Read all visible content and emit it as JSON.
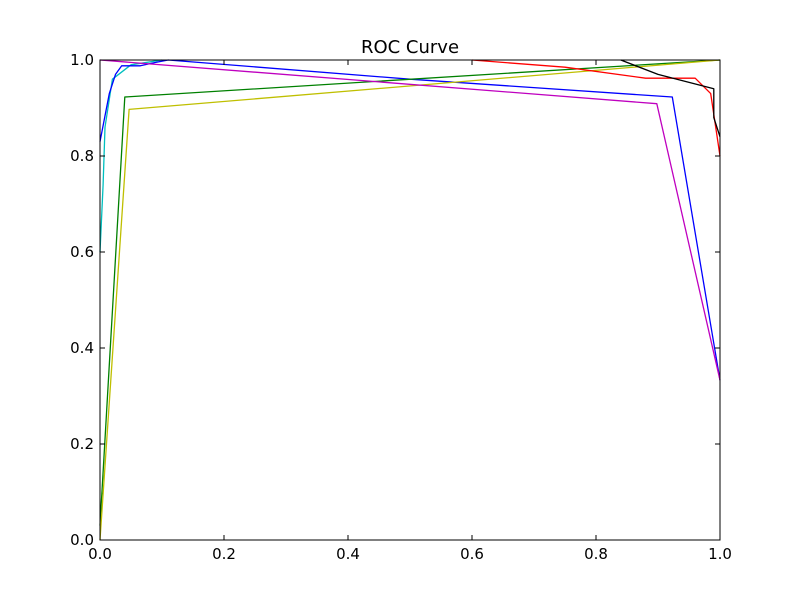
{
  "chart_data": {
    "type": "line",
    "title": "ROC Curve",
    "xlabel": "",
    "ylabel": "",
    "xlim": [
      0,
      1
    ],
    "ylim": [
      0,
      1
    ],
    "grid": false,
    "legend": "none",
    "xticks": [
      "0.0",
      "0.2",
      "0.4",
      "0.6",
      "0.8",
      "1.0"
    ],
    "yticks": [
      "0.0",
      "0.2",
      "0.4",
      "0.6",
      "0.8",
      "1.0"
    ],
    "series": [
      {
        "color": "#00bfbf",
        "x": [
          0,
          0.005,
          0.008,
          0.02,
          0.05,
          0.1
        ],
        "y": [
          0.6,
          0.74,
          0.86,
          0.96,
          0.99,
          1.0
        ]
      },
      {
        "color": "#0000ff",
        "x": [
          0,
          0.015,
          0.025,
          0.035,
          0.065,
          0.09,
          0.11,
          0.5,
          0.923,
          1.0
        ],
        "y": [
          0.83,
          0.93,
          0.97,
          0.988,
          0.988,
          0.995,
          1.0,
          0.96,
          0.923,
          0.333
        ]
      },
      {
        "color": "#008000",
        "x": [
          0,
          0.04,
          1.0
        ],
        "y": [
          0.03,
          0.923,
          1.0
        ]
      },
      {
        "color": "#bfbf00",
        "x": [
          0,
          0.047,
          1.0
        ],
        "y": [
          0.0,
          0.897,
          1.0
        ]
      },
      {
        "color": "#bf00bf",
        "x": [
          0,
          0.898,
          1.0
        ],
        "y": [
          1.0,
          0.909,
          0.333
        ]
      },
      {
        "color": "#ff0000",
        "x": [
          0.6,
          0.75,
          0.88,
          0.96,
          0.985,
          1.0
        ],
        "y": [
          1.0,
          0.985,
          0.962,
          0.962,
          0.93,
          0.8
        ]
      },
      {
        "color": "#000000",
        "x": [
          0.84,
          0.9,
          0.99,
          0.99,
          1.0
        ],
        "y": [
          1.0,
          0.97,
          0.94,
          0.88,
          0.84
        ]
      }
    ]
  }
}
